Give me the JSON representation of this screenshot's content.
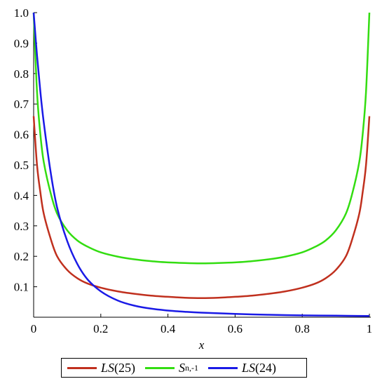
{
  "chart_data": {
    "type": "line",
    "title": "",
    "xlabel": "x",
    "ylabel": "",
    "xlim": [
      0,
      1
    ],
    "ylim": [
      0,
      1
    ],
    "xticks": [
      "0",
      "0.2",
      "0.4",
      "0.6",
      "0.8",
      "1"
    ],
    "yticks": [
      "0.1",
      "0.2",
      "0.3",
      "0.4",
      "0.5",
      "0.6",
      "0.7",
      "0.8",
      "0.9",
      "1.0"
    ],
    "grid": false,
    "legend_position": "bottom",
    "series": [
      {
        "name": "LS(25)",
        "color": "#c0301e",
        "x": [
          0,
          0.01,
          0.02,
          0.03,
          0.05,
          0.07,
          0.1,
          0.13,
          0.16,
          0.2,
          0.25,
          0.3,
          0.35,
          0.4,
          0.45,
          0.5,
          0.55,
          0.6,
          0.65,
          0.7,
          0.75,
          0.8,
          0.84,
          0.87,
          0.9,
          0.93,
          0.95,
          0.97,
          0.98,
          0.99,
          1
        ],
        "values": [
          0.66,
          0.5,
          0.41,
          0.34,
          0.26,
          0.2,
          0.155,
          0.128,
          0.111,
          0.097,
          0.085,
          0.077,
          0.071,
          0.067,
          0.064,
          0.063,
          0.064,
          0.067,
          0.071,
          0.077,
          0.085,
          0.097,
          0.111,
          0.128,
          0.155,
          0.2,
          0.26,
          0.34,
          0.41,
          0.5,
          0.66
        ]
      },
      {
        "name": "Sn,-1",
        "color": "#33dd11",
        "x": [
          0.0,
          0.01,
          0.02,
          0.03,
          0.05,
          0.07,
          0.1,
          0.13,
          0.16,
          0.2,
          0.25,
          0.3,
          0.35,
          0.4,
          0.45,
          0.5,
          0.55,
          0.6,
          0.65,
          0.7,
          0.75,
          0.8,
          0.84,
          0.87,
          0.9,
          0.93,
          0.95,
          0.97,
          0.98,
          0.99,
          1.0
        ],
        "values": [
          1.0,
          0.74,
          0.6,
          0.51,
          0.41,
          0.34,
          0.285,
          0.252,
          0.232,
          0.213,
          0.199,
          0.19,
          0.184,
          0.18,
          0.178,
          0.177,
          0.178,
          0.18,
          0.184,
          0.19,
          0.199,
          0.213,
          0.232,
          0.252,
          0.285,
          0.34,
          0.41,
          0.51,
          0.6,
          0.74,
          1.0
        ]
      },
      {
        "name": "LS(24)",
        "color": "#1a1ae6",
        "x": [
          0,
          0.01,
          0.02,
          0.03,
          0.05,
          0.07,
          0.1,
          0.13,
          0.16,
          0.2,
          0.25,
          0.3,
          0.35,
          0.4,
          0.45,
          0.5,
          0.6,
          0.7,
          0.8,
          0.9,
          1
        ],
        "values": [
          1.0,
          0.86,
          0.74,
          0.64,
          0.48,
          0.36,
          0.25,
          0.175,
          0.125,
          0.085,
          0.055,
          0.038,
          0.028,
          0.022,
          0.018,
          0.015,
          0.011,
          0.008,
          0.006,
          0.005,
          0.004
        ]
      }
    ]
  },
  "legend": {
    "items": [
      {
        "italic": "LS",
        "rest": "(25)"
      },
      {
        "italic": "S",
        "sub": "n,-1"
      },
      {
        "italic": "LS",
        "rest": "(24)"
      }
    ]
  }
}
